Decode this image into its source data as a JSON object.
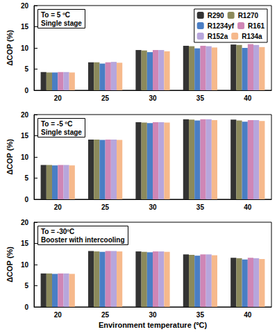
{
  "chart_data": [
    {
      "type": "bar",
      "title": "To = 5 ºC",
      "subtitle": "Single stage",
      "y_label": "ΔCOP (%)",
      "categories": [
        "20",
        "25",
        "30",
        "35",
        "40"
      ],
      "series": [
        {
          "name": "R290",
          "color": "#333333",
          "values": [
            4.3,
            6.6,
            9.5,
            10.5,
            10.8
          ]
        },
        {
          "name": "R1270",
          "color": "#8c8a5c",
          "values": [
            4.2,
            6.6,
            9.4,
            10.4,
            10.7
          ]
        },
        {
          "name": "R1234yf",
          "color": "#4a7ec4",
          "values": [
            4.2,
            6.3,
            9.0,
            9.9,
            10.0
          ]
        },
        {
          "name": "R161",
          "color": "#cf86b6",
          "values": [
            4.3,
            6.6,
            9.5,
            10.5,
            10.9
          ]
        },
        {
          "name": "R152a",
          "color": "#b7a6dc",
          "values": [
            4.3,
            6.7,
            9.5,
            10.4,
            10.7
          ]
        },
        {
          "name": "R134a",
          "color": "#f6b98c",
          "values": [
            4.2,
            6.5,
            9.2,
            10.1,
            10.2
          ]
        }
      ],
      "ylim": [
        0,
        20
      ],
      "yticks": [
        0,
        5,
        10,
        15,
        20
      ],
      "grid": false,
      "legend": "upper right"
    },
    {
      "type": "bar",
      "title": "To = -5 ºC",
      "subtitle": "Single stage",
      "y_label": "ΔCOP (%)",
      "categories": [
        "20",
        "25",
        "30",
        "35",
        "40"
      ],
      "series": [
        {
          "name": "R290",
          "color": "#333333",
          "values": [
            8.1,
            14.1,
            18.2,
            18.9,
            18.8
          ]
        },
        {
          "name": "R1270",
          "color": "#8c8a5c",
          "values": [
            8.1,
            14.1,
            18.1,
            18.8,
            18.6
          ]
        },
        {
          "name": "R1234yf",
          "color": "#4a7ec4",
          "values": [
            8.0,
            14.0,
            18.0,
            18.6,
            18.3
          ]
        },
        {
          "name": "R161",
          "color": "#cf86b6",
          "values": [
            8.1,
            14.1,
            18.2,
            18.9,
            18.7
          ]
        },
        {
          "name": "R152a",
          "color": "#b7a6dc",
          "values": [
            8.1,
            14.1,
            18.2,
            18.9,
            18.7
          ]
        },
        {
          "name": "R134a",
          "color": "#f6b98c",
          "values": [
            8.0,
            14.0,
            18.1,
            18.7,
            18.5
          ]
        }
      ],
      "ylim": [
        0,
        20
      ],
      "yticks": [
        0,
        5,
        10,
        15,
        20
      ],
      "grid": false
    },
    {
      "type": "bar",
      "title": "To = -30ºC",
      "subtitle": "Booster with intercooling",
      "y_label": "ΔCOP (%)",
      "x_label": "Environment temperature (ºC)",
      "categories": [
        "20",
        "25",
        "30",
        "35",
        "40"
      ],
      "series": [
        {
          "name": "R290",
          "color": "#333333",
          "values": [
            7.9,
            13.2,
            13.1,
            12.4,
            11.6
          ]
        },
        {
          "name": "R1270",
          "color": "#8c8a5c",
          "values": [
            7.9,
            13.1,
            13.0,
            12.3,
            11.5
          ]
        },
        {
          "name": "R1234yf",
          "color": "#4a7ec4",
          "values": [
            7.8,
            13.0,
            12.9,
            12.1,
            11.2
          ]
        },
        {
          "name": "R161",
          "color": "#cf86b6",
          "values": [
            7.9,
            13.2,
            13.1,
            12.4,
            11.6
          ]
        },
        {
          "name": "R152a",
          "color": "#b7a6dc",
          "values": [
            7.9,
            13.2,
            13.1,
            12.4,
            11.5
          ]
        },
        {
          "name": "R134a",
          "color": "#f6b98c",
          "values": [
            7.8,
            13.1,
            13.0,
            12.2,
            11.3
          ]
        }
      ],
      "ylim": [
        0,
        20
      ],
      "yticks": [
        0,
        5,
        10,
        15,
        20
      ],
      "grid": false
    }
  ]
}
